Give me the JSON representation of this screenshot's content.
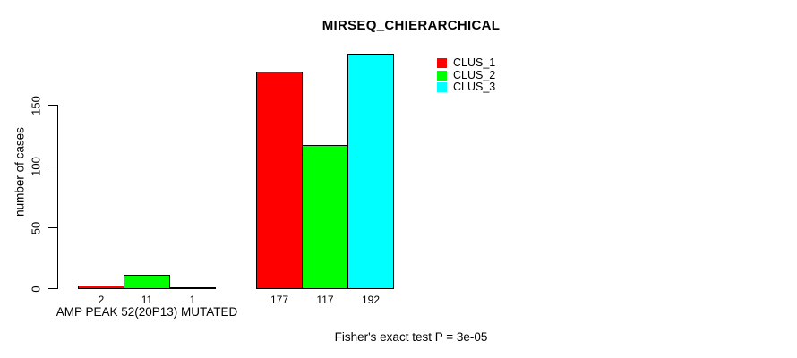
{
  "chart_data": {
    "type": "bar",
    "title": "MIRSEQ_CHIERARCHICAL",
    "ylabel": "number of cases",
    "xlabel": "",
    "annotation": "Fisher's exact test P = 3e-05",
    "yticks": [
      0,
      50,
      100,
      150
    ],
    "ylim": [
      0,
      192
    ],
    "grid": false,
    "legend_position": "top-right",
    "series": [
      {
        "name": "CLUS_1",
        "color": "#ff0000"
      },
      {
        "name": "CLUS_2",
        "color": "#00ff00"
      },
      {
        "name": "CLUS_3",
        "color": "#00ffff"
      }
    ],
    "groups": [
      {
        "label": "AMP PEAK 52(20P13) MUTATED",
        "values": [
          2,
          11,
          1
        ]
      },
      {
        "label": "",
        "values": [
          177,
          117,
          192
        ]
      }
    ]
  }
}
